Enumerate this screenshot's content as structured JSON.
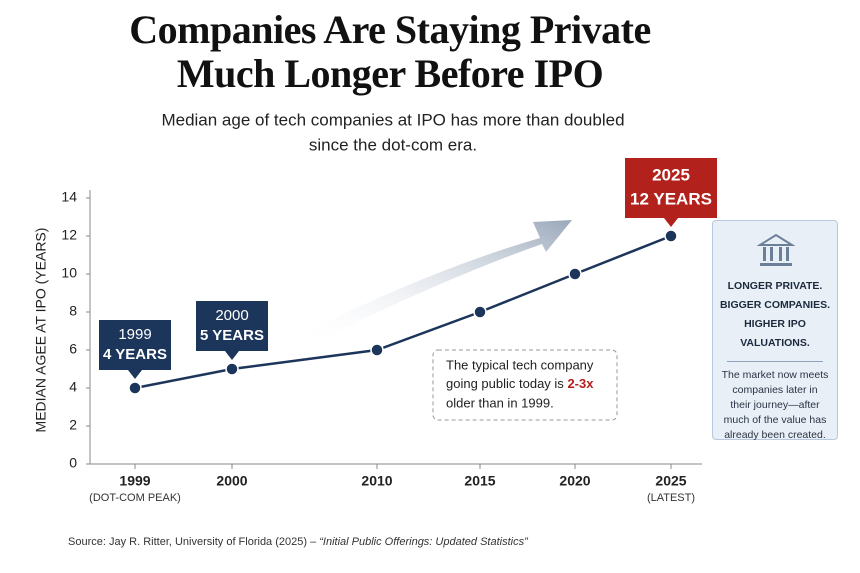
{
  "chart_data": {
    "type": "line",
    "title_lines": [
      "Companies Are Staying Private",
      "Much Longer Before IPO"
    ],
    "subtitle_lines": [
      "Median age of tech companies at IPO has more than doubled",
      "since the dot-com era."
    ],
    "y_label": "MEDIAN AGEE AT IPO (YEARS)",
    "categories": [
      "1999",
      "2000",
      "2010",
      "2015",
      "2020",
      "2025"
    ],
    "category_notes": [
      "(DOT-COM PEAK)",
      null,
      null,
      null,
      null,
      "(LATEST)"
    ],
    "values": [
      4,
      5,
      6,
      8,
      10,
      12
    ],
    "value_labels": [
      "4 YEARS",
      "5 YEARS",
      null,
      null,
      null,
      "12 YEARS"
    ],
    "color": "#1c355a",
    "highlight_color": "#b3211c",
    "ylim": [
      0,
      14
    ],
    "yticks": [
      0,
      2,
      4,
      6,
      8,
      10,
      12,
      14
    ],
    "note": {
      "line1": "The typical tech company",
      "line2": "going public today is",
      "highlight": "2-3x",
      "line3": "older than in 1999."
    },
    "panel": {
      "heading": [
        "LONGER PRIVATE.",
        "BIGGER COMPANIES.",
        "HIGHER IPO VALUATIONS."
      ],
      "body": "The market now meets companies later in their journey—after much of the value has already been created."
    },
    "source": {
      "text": "Source: Jay R. Ritter, University of Florida (2025) – ",
      "citation": "“Initial Public Offerings: Updated Statistics”"
    }
  }
}
